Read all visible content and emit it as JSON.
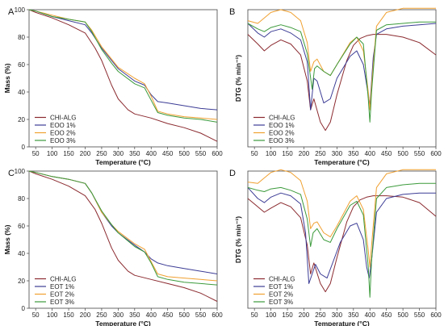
{
  "colors": {
    "CHI-ALG": "#8b2a2f",
    "EOO 1%": "#3c3c96",
    "EOO 2%": "#f0a030",
    "EOO 3%": "#3c9a3c",
    "EOT 1%": "#3c3c96",
    "EOT 2%": "#f0a030",
    "EOT 3%": "#3c9a3c"
  },
  "chart_data": [
    {
      "panel": "A",
      "type": "line",
      "xlabel": "Temperature (°C)",
      "ylabel": "Mass (%)",
      "xlim": [
        30,
        600
      ],
      "ylim": [
        0,
        100
      ],
      "xticks": [
        50,
        100,
        150,
        200,
        250,
        300,
        350,
        400,
        450,
        500,
        550,
        600
      ],
      "yticks": [
        0,
        20,
        40,
        60,
        80,
        100
      ],
      "y_ticklabels": true,
      "legend": "bottom-left",
      "series": [
        {
          "name": "CHI-ALG",
          "x": [
            30,
            50,
            100,
            150,
            200,
            230,
            250,
            280,
            300,
            330,
            350,
            400,
            450,
            500,
            550,
            600
          ],
          "y": [
            100,
            98,
            94,
            89,
            83,
            72,
            63,
            45,
            35,
            27,
            24,
            21,
            17,
            14,
            10,
            4
          ]
        },
        {
          "name": "EOO 1%",
          "x": [
            30,
            50,
            100,
            150,
            200,
            220,
            250,
            280,
            300,
            350,
            380,
            400,
            420,
            450,
            500,
            550,
            600
          ],
          "y": [
            100,
            99,
            95,
            92,
            89,
            83,
            72,
            63,
            57,
            48,
            45,
            38,
            33,
            32,
            30,
            28,
            27
          ]
        },
        {
          "name": "EOO 2%",
          "x": [
            30,
            50,
            100,
            150,
            200,
            220,
            250,
            280,
            300,
            350,
            380,
            400,
            420,
            450,
            500,
            550,
            600
          ],
          "y": [
            100,
            99,
            96,
            93,
            91,
            85,
            73,
            64,
            58,
            50,
            46,
            37,
            26,
            24,
            22,
            21,
            20
          ]
        },
        {
          "name": "EOO 3%",
          "x": [
            30,
            50,
            100,
            150,
            200,
            220,
            250,
            280,
            300,
            350,
            380,
            400,
            420,
            450,
            500,
            550,
            600
          ],
          "y": [
            100,
            99,
            95,
            93,
            91,
            84,
            71,
            61,
            55,
            46,
            43,
            34,
            25,
            23,
            21,
            20,
            18
          ]
        }
      ]
    },
    {
      "panel": "B",
      "type": "line",
      "xlabel": "Temperature (°C)",
      "ylabel": "DTG (% min⁻¹)",
      "xlim": [
        30,
        600
      ],
      "ylim": [
        0,
        100
      ],
      "xticks": [
        50,
        100,
        150,
        200,
        250,
        300,
        350,
        400,
        450,
        500,
        550,
        600
      ],
      "yticks": [],
      "y_ticklabels": false,
      "legend": "bottom-left",
      "series": [
        {
          "name": "CHI-ALG",
          "x": [
            30,
            60,
            80,
            100,
            130,
            160,
            190,
            210,
            220,
            230,
            250,
            265,
            280,
            300,
            330,
            350,
            370,
            390,
            410,
            450,
            500,
            550,
            600
          ],
          "y": [
            82,
            75,
            70,
            74,
            78,
            75,
            67,
            48,
            27,
            35,
            18,
            12,
            18,
            38,
            63,
            74,
            79,
            81,
            82,
            82,
            80,
            76,
            67
          ]
        },
        {
          "name": "EOO 1%",
          "x": [
            30,
            60,
            80,
            100,
            130,
            160,
            190,
            210,
            220,
            230,
            240,
            260,
            280,
            300,
            340,
            360,
            380,
            395,
            400,
            410,
            420,
            450,
            500,
            550,
            600
          ],
          "y": [
            90,
            83,
            80,
            84,
            86,
            83,
            78,
            62,
            27,
            50,
            48,
            32,
            35,
            50,
            66,
            70,
            60,
            38,
            30,
            65,
            82,
            86,
            88,
            89,
            90
          ]
        },
        {
          "name": "EOO 2%",
          "x": [
            30,
            60,
            80,
            100,
            130,
            160,
            190,
            210,
            220,
            230,
            240,
            260,
            280,
            300,
            340,
            360,
            380,
            395,
            400,
            405,
            420,
            450,
            500,
            550,
            600
          ],
          "y": [
            92,
            90,
            94,
            98,
            100,
            98,
            92,
            76,
            55,
            62,
            64,
            55,
            52,
            60,
            76,
            80,
            70,
            40,
            27,
            45,
            88,
            98,
            101,
            101,
            101
          ]
        },
        {
          "name": "EOO 3%",
          "x": [
            30,
            60,
            80,
            100,
            130,
            160,
            190,
            210,
            225,
            232,
            240,
            260,
            280,
            300,
            340,
            360,
            380,
            395,
            400,
            405,
            420,
            450,
            500,
            550,
            600
          ],
          "y": [
            90,
            86,
            84,
            87,
            89,
            87,
            84,
            68,
            42,
            57,
            59,
            55,
            52,
            60,
            75,
            80,
            75,
            35,
            18,
            40,
            85,
            89,
            90,
            91,
            91
          ]
        }
      ]
    },
    {
      "panel": "C",
      "type": "line",
      "xlabel": "Temperature (°C)",
      "ylabel": "Mass (%)",
      "xlim": [
        30,
        600
      ],
      "ylim": [
        0,
        100
      ],
      "xticks": [
        50,
        100,
        150,
        200,
        250,
        300,
        350,
        400,
        450,
        500,
        550,
        600
      ],
      "yticks": [
        0,
        20,
        40,
        60,
        80,
        100
      ],
      "y_ticklabels": true,
      "legend": "bottom-left",
      "series": [
        {
          "name": "CHI-ALG",
          "x": [
            30,
            50,
            100,
            150,
            200,
            230,
            250,
            280,
            300,
            330,
            350,
            400,
            450,
            500,
            550,
            600
          ],
          "y": [
            100,
            98,
            94,
            89,
            82,
            72,
            62,
            44,
            35,
            27,
            24,
            21,
            18,
            15,
            11,
            5
          ]
        },
        {
          "name": "EOT 1%",
          "x": [
            30,
            50,
            100,
            150,
            200,
            220,
            250,
            280,
            300,
            350,
            380,
            400,
            420,
            450,
            500,
            550,
            600
          ],
          "y": [
            100,
            99,
            96,
            94,
            91,
            84,
            70,
            60,
            55,
            46,
            41,
            36,
            33,
            31,
            29,
            27,
            25
          ]
        },
        {
          "name": "EOT 2%",
          "x": [
            30,
            50,
            100,
            150,
            200,
            220,
            250,
            280,
            300,
            350,
            380,
            400,
            420,
            450,
            500,
            550,
            600
          ],
          "y": [
            100,
            99,
            96,
            94,
            91,
            84,
            70,
            61,
            56,
            47,
            43,
            34,
            25,
            23,
            22,
            21,
            20
          ]
        },
        {
          "name": "EOT 3%",
          "x": [
            30,
            50,
            100,
            150,
            200,
            220,
            250,
            280,
            300,
            350,
            380,
            400,
            420,
            450,
            500,
            550,
            600
          ],
          "y": [
            100,
            99,
            96,
            94,
            91,
            84,
            71,
            61,
            55,
            45,
            41,
            33,
            23,
            21,
            19,
            18,
            17
          ]
        }
      ]
    },
    {
      "panel": "D",
      "type": "line",
      "xlabel": "Temperature (°C)",
      "ylabel": "DTG (% min⁻¹)",
      "xlim": [
        30,
        600
      ],
      "ylim": [
        0,
        100
      ],
      "xticks": [
        50,
        100,
        150,
        200,
        250,
        300,
        350,
        400,
        450,
        500,
        550,
        600
      ],
      "yticks": [],
      "y_ticklabels": false,
      "legend": "bottom-left",
      "series": [
        {
          "name": "CHI-ALG",
          "x": [
            30,
            60,
            80,
            100,
            130,
            160,
            190,
            210,
            220,
            230,
            250,
            265,
            280,
            300,
            330,
            350,
            370,
            390,
            410,
            450,
            500,
            550,
            600
          ],
          "y": [
            80,
            74,
            70,
            73,
            77,
            74,
            66,
            46,
            25,
            33,
            18,
            12,
            18,
            37,
            63,
            74,
            79,
            81,
            82,
            82,
            81,
            77,
            67
          ]
        },
        {
          "name": "EOT 1%",
          "x": [
            30,
            60,
            80,
            100,
            130,
            160,
            190,
            205,
            215,
            225,
            235,
            250,
            270,
            290,
            310,
            340,
            360,
            380,
            390,
            398,
            405,
            420,
            450,
            500,
            550,
            600
          ],
          "y": [
            88,
            80,
            77,
            81,
            84,
            82,
            76,
            55,
            18,
            25,
            32,
            25,
            22,
            35,
            48,
            60,
            62,
            50,
            30,
            22,
            35,
            70,
            80,
            83,
            84,
            84
          ]
        },
        {
          "name": "EOT 2%",
          "x": [
            30,
            60,
            80,
            100,
            130,
            160,
            190,
            210,
            220,
            230,
            240,
            260,
            280,
            300,
            340,
            360,
            380,
            395,
            400,
            405,
            420,
            450,
            500,
            550,
            600
          ],
          "y": [
            92,
            91,
            95,
            99,
            101,
            99,
            93,
            78,
            58,
            62,
            63,
            55,
            52,
            60,
            78,
            82,
            72,
            42,
            30,
            46,
            88,
            98,
            101,
            101,
            101
          ]
        },
        {
          "name": "EOT 3%",
          "x": [
            30,
            60,
            80,
            100,
            130,
            160,
            190,
            210,
            220,
            228,
            240,
            260,
            280,
            300,
            340,
            360,
            380,
            395,
            400,
            405,
            420,
            450,
            500,
            550,
            600
          ],
          "y": [
            88,
            86,
            85,
            87,
            88,
            86,
            83,
            65,
            45,
            55,
            58,
            50,
            48,
            58,
            75,
            78,
            68,
            30,
            8,
            35,
            80,
            88,
            90,
            91,
            91
          ]
        }
      ]
    }
  ]
}
